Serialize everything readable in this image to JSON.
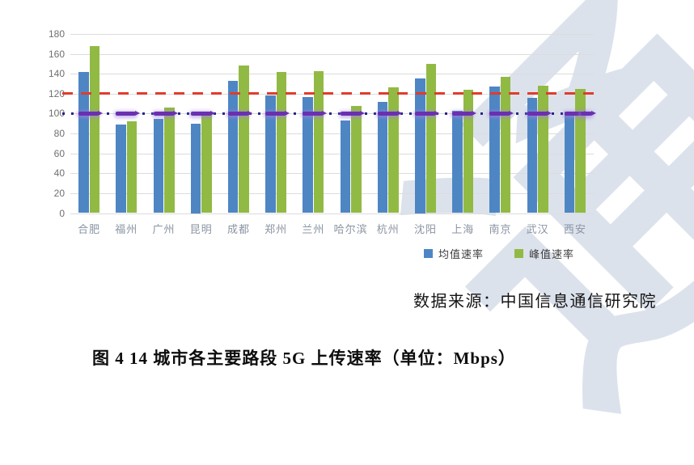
{
  "chart_data": {
    "type": "bar",
    "title": "",
    "xlabel": "",
    "ylabel": "",
    "unit": "Mbps",
    "categories": [
      "合肥",
      "福州",
      "广州",
      "昆明",
      "成都",
      "郑州",
      "兰州",
      "哈尔滨",
      "杭州",
      "沈阳",
      "上海",
      "南京",
      "武汉",
      "西安"
    ],
    "series": [
      {
        "name": "均值速率",
        "color": "#4e86c4",
        "values": [
          142,
          89,
          95,
          90,
          133,
          118,
          117,
          93,
          112,
          135,
          103,
          127,
          116,
          101
        ]
      },
      {
        "name": "峰值速率",
        "color": "#91ba44",
        "values": [
          168,
          92,
          106,
          100,
          148,
          142,
          143,
          108,
          126,
          150,
          124,
          137,
          128,
          125
        ]
      }
    ],
    "ylim": [
      0,
      180
    ],
    "ytick_interval": 20,
    "grid": true,
    "legend_position": "bottom",
    "reference_lines": [
      {
        "value": 120,
        "style": "dashed",
        "color": "#e03c2d"
      },
      {
        "value": 100,
        "style": "dash-dot-marker",
        "line_color": "#26268f",
        "marker_color": "#6a30b0"
      }
    ]
  },
  "legend": {
    "items": [
      {
        "label": "均值速率",
        "color": "#4e86c4"
      },
      {
        "label": "峰值速率",
        "color": "#91ba44"
      }
    ]
  },
  "source_note": "数据来源：中国信息通信研究院",
  "caption": "图 4  14 城市各主要路段 5G 上传速率（单位：Mbps）",
  "watermark": "通"
}
